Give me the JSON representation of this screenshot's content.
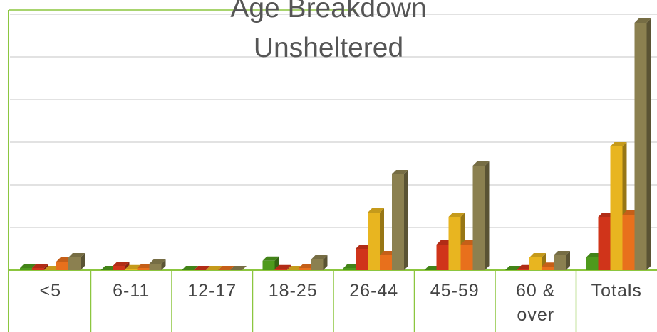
{
  "chart_data": {
    "type": "bar",
    "title": "Age Breakdown Unsheltered",
    "categories": [
      "<5",
      "6-11",
      "12-17",
      "18-25",
      "26-44",
      "45-59",
      "60 & over",
      "Totals"
    ],
    "series": [
      {
        "color": "#4e9a1c",
        "values": [
          0.05,
          0,
          0,
          0.22,
          0.05,
          0,
          0,
          0.3
        ]
      },
      {
        "color": "#d0341a",
        "values": [
          0.05,
          0.1,
          0,
          0.02,
          0.5,
          0.6,
          0.02,
          1.25
        ]
      },
      {
        "color": "#e8b520",
        "values": [
          0,
          0.02,
          0,
          0,
          1.35,
          1.25,
          0.3,
          2.9
        ]
      },
      {
        "color": "#e8701c",
        "values": [
          0.2,
          0.05,
          0,
          0.05,
          0.35,
          0.6,
          0.08,
          1.3
        ]
      },
      {
        "color": "#8b8050",
        "values": [
          0.3,
          0.15,
          0,
          0.25,
          2.25,
          2.45,
          0.35,
          5.8
        ]
      }
    ],
    "ylim": [
      0,
      6.1
    ],
    "yticks": [
      0,
      1,
      2,
      3,
      4,
      5,
      6
    ],
    "grid": true
  }
}
